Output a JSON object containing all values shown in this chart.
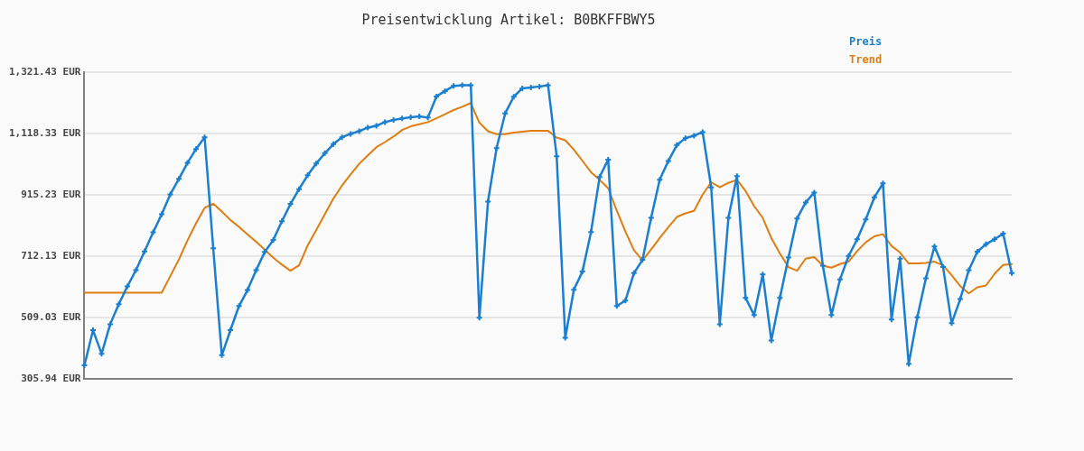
{
  "chart_data": {
    "type": "line",
    "title": "Preisentwicklung Artikel: B0BKFFBWY5",
    "categories": [
      null,
      null,
      null,
      null,
      null,
      null,
      null,
      null,
      null,
      null,
      null,
      null,
      null,
      null,
      null,
      null,
      null,
      null,
      null,
      null,
      null,
      null,
      null,
      null,
      null,
      null,
      null,
      null,
      null,
      null,
      null,
      null,
      null,
      null,
      null,
      null,
      null,
      null,
      null,
      null,
      null,
      null,
      null,
      null,
      null,
      null,
      null,
      null,
      null,
      null,
      null,
      null,
      null,
      null,
      null,
      null,
      null,
      null,
      null,
      null,
      null,
      null,
      null,
      null,
      null,
      null,
      null,
      null,
      null,
      null,
      null,
      null,
      null,
      null,
      null,
      null,
      null,
      null,
      null,
      null,
      null,
      null,
      null,
      null,
      null,
      null,
      null,
      null,
      null,
      null,
      null,
      null,
      null,
      null,
      null,
      null,
      null,
      null,
      null,
      null,
      null,
      null,
      null,
      null,
      null,
      null,
      null,
      null,
      null
    ],
    "series": [
      {
        "name": "Preis",
        "color": "#1a7fd0",
        "values": [
          351,
          467,
          389,
          487,
          553,
          612,
          666,
          728,
          791,
          851,
          917,
          968,
          1021,
          1067,
          1106,
          738,
          384,
          467,
          547,
          600,
          666,
          726,
          766,
          828,
          885,
          934,
          980,
          1019,
          1053,
          1083,
          1106,
          1117,
          1126,
          1138,
          1144,
          1156,
          1163,
          1168,
          1172,
          1175,
          1171,
          1241,
          1259,
          1276,
          1278,
          1278,
          508,
          893,
          1070,
          1185,
          1240,
          1268,
          1271,
          1274,
          1278,
          1043,
          442,
          601,
          661,
          792,
          974,
          1032,
          547,
          565,
          656,
          700,
          839,
          965,
          1027,
          1080,
          1103,
          1111,
          1123,
          940,
          487,
          839,
          977,
          574,
          517,
          652,
          433,
          574,
          708,
          837,
          890,
          923,
          681,
          517,
          635,
          713,
          768,
          834,
          907,
          953,
          502,
          704,
          355,
          510,
          639,
          744,
          676,
          490,
          570,
          666,
          727,
          752,
          768,
          787,
          656
        ]
      },
      {
        "name": "Trend",
        "color": "#e07d10",
        "marker": "none",
        "values": [
          591,
          591,
          591,
          591,
          591,
          591,
          591,
          591,
          591,
          591,
          646,
          701,
          764,
          821,
          872,
          886,
          860,
          832,
          809,
          784,
          760,
          734,
          707,
          684,
          664,
          682,
          748,
          799,
          851,
          903,
          946,
          983,
          1018,
          1046,
          1073,
          1090,
          1108,
          1130,
          1142,
          1149,
          1156,
          1169,
          1182,
          1196,
          1207,
          1219,
          1154,
          1126,
          1116,
          1116,
          1121,
          1124,
          1127,
          1127,
          1127,
          1105,
          1096,
          1065,
          1028,
          990,
          965,
          937,
          863,
          794,
          732,
          698,
          734,
          772,
          808,
          842,
          854,
          862,
          916,
          957,
          940,
          955,
          965,
          928,
          878,
          839,
          772,
          721,
          676,
          664,
          704,
          709,
          681,
          674,
          686,
          694,
          729,
          758,
          778,
          785,
          746,
          724,
          688,
          688,
          690,
          694,
          682,
          649,
          613,
          589,
          609,
          615,
          654,
          683,
          686
        ]
      }
    ],
    "ylim": [
      305.94,
      1321.43
    ],
    "yticks": [
      {
        "value": 305.94,
        "label": "305.94 EUR"
      },
      {
        "value": 509.03,
        "label": "509.03 EUR"
      },
      {
        "value": 712.13,
        "label": "712.13 EUR"
      },
      {
        "value": 915.23,
        "label": "915.23 EUR"
      },
      {
        "value": 1118.33,
        "label": "1,118.33 EUR"
      },
      {
        "value": 1321.43,
        "label": "1,321.43 EUR"
      }
    ],
    "grid": "y",
    "legend": "top right",
    "tick_labels": "y",
    "marker": "cross"
  }
}
